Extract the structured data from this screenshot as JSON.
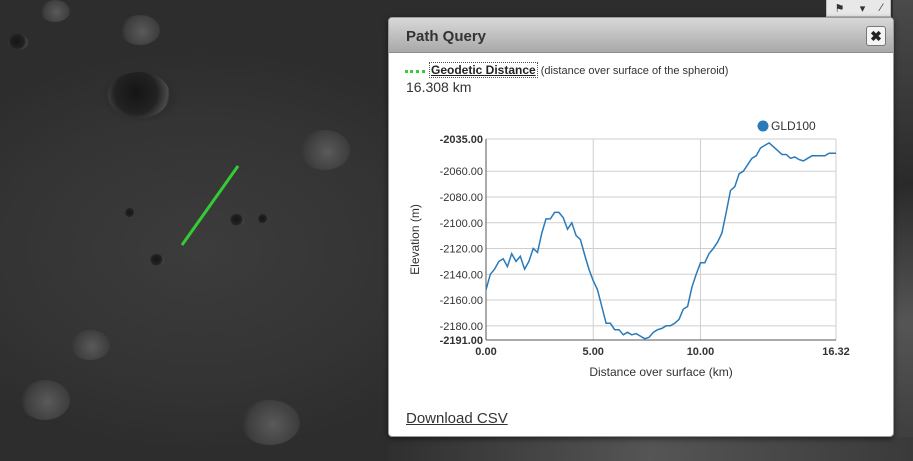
{
  "popup": {
    "title": "Path Query",
    "close_glyph": "✖",
    "measure_name": "Geodetic Distance",
    "measure_note": "(distance over surface of the spheroid)",
    "measure_value": "16.308 km",
    "download_label": "Download CSV"
  },
  "top_tools": {
    "pin_glyph": "⚑",
    "dropdown_glyph": "▾",
    "extra_glyph": "⁄"
  },
  "colors": {
    "path_line": "#33cc33",
    "series": "#2a7ab9"
  },
  "chart_data": {
    "type": "line",
    "xlabel": "Distance over surface (km)",
    "ylabel": "Elevation (m)",
    "xlim": [
      0,
      16.32
    ],
    "ylim": [
      -2191,
      -2035
    ],
    "x_ticks": [
      "0.00",
      "5.00",
      "10.00",
      "16.32"
    ],
    "y_ticks": [
      "-2035.00",
      "-2060.00",
      "-2080.00",
      "-2100.00",
      "-2120.00",
      "-2140.00",
      "-2160.00",
      "-2180.00",
      "-2191.00"
    ],
    "grid": true,
    "legend_position": "top-right",
    "series": [
      {
        "name": "GLD100",
        "x": [
          0.0,
          0.2,
          0.4,
          0.6,
          0.8,
          1.0,
          1.2,
          1.4,
          1.6,
          1.8,
          2.0,
          2.2,
          2.4,
          2.6,
          2.8,
          3.0,
          3.2,
          3.4,
          3.6,
          3.8,
          4.0,
          4.2,
          4.4,
          4.6,
          4.8,
          5.0,
          5.2,
          5.4,
          5.6,
          5.8,
          6.0,
          6.2,
          6.4,
          6.6,
          6.8,
          7.0,
          7.2,
          7.4,
          7.6,
          7.8,
          8.0,
          8.2,
          8.4,
          8.6,
          8.8,
          9.0,
          9.2,
          9.4,
          9.6,
          9.8,
          10.0,
          10.2,
          10.4,
          10.6,
          10.8,
          11.0,
          11.2,
          11.4,
          11.6,
          11.8,
          12.0,
          12.2,
          12.4,
          12.6,
          12.8,
          13.0,
          13.2,
          13.4,
          13.6,
          13.8,
          14.0,
          14.2,
          14.4,
          14.6,
          14.8,
          15.0,
          15.2,
          15.4,
          15.6,
          15.8,
          16.0,
          16.32
        ],
        "y": [
          -2152,
          -2140,
          -2136,
          -2130,
          -2128,
          -2134,
          -2124,
          -2130,
          -2126,
          -2136,
          -2130,
          -2120,
          -2123,
          -2108,
          -2097,
          -2097,
          -2092,
          -2092,
          -2096,
          -2105,
          -2100,
          -2110,
          -2113,
          -2125,
          -2136,
          -2145,
          -2152,
          -2165,
          -2178,
          -2178,
          -2183,
          -2183,
          -2187,
          -2185,
          -2187,
          -2186,
          -2188,
          -2190,
          -2189,
          -2185,
          -2183,
          -2182,
          -2180,
          -2180,
          -2178,
          -2175,
          -2167,
          -2165,
          -2150,
          -2140,
          -2131,
          -2131,
          -2124,
          -2120,
          -2115,
          -2108,
          -2092,
          -2075,
          -2072,
          -2062,
          -2060,
          -2055,
          -2050,
          -2048,
          -2042,
          -2040,
          -2038,
          -2041,
          -2044,
          -2047,
          -2047,
          -2050,
          -2049,
          -2051,
          -2052,
          -2050,
          -2048,
          -2048,
          -2048,
          -2048,
          -2046,
          -2046
        ]
      }
    ]
  }
}
